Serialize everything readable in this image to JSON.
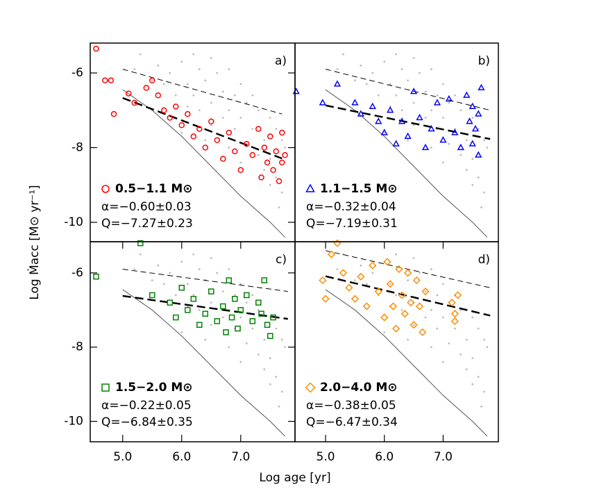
{
  "xlabel": "Log age [yr]",
  "ylabel": "Log Ṁacc [M⊙ yr⁻¹]",
  "background_points": {
    "color": "#bbbbbb",
    "x": [
      5.3,
      5.6,
      5.8,
      6.0,
      6.1,
      6.2,
      6.3,
      6.4,
      6.5,
      6.6,
      6.7,
      6.8,
      6.9,
      7.0,
      7.1,
      7.2,
      7.3,
      7.4,
      7.5,
      7.6,
      7.7,
      7.75,
      7.6,
      7.4,
      7.3,
      7.1,
      6.9,
      6.7,
      6.5,
      6.3,
      6.1,
      5.9,
      5.7,
      5.5,
      5.2,
      6.2,
      6.5,
      6.8,
      7.0,
      7.2,
      7.5,
      7.7,
      7.65,
      7.5,
      6.0,
      6.4,
      6.8,
      7.0
    ],
    "y": [
      -5.5,
      -5.8,
      -6.0,
      -5.7,
      -6.3,
      -6.6,
      -5.9,
      -6.2,
      -6.8,
      -6.0,
      -6.5,
      -7.0,
      -6.6,
      -7.2,
      -6.8,
      -7.5,
      -7.0,
      -7.8,
      -8.3,
      -8.8,
      -9.2,
      -8.0,
      -7.5,
      -8.6,
      -8.2,
      -7.9,
      -7.5,
      -7.2,
      -7.4,
      -7.0,
      -6.9,
      -6.6,
      -6.3,
      -6.2,
      -5.9,
      -5.5,
      -5.6,
      -5.9,
      -6.3,
      -6.6,
      -7.2,
      -7.8,
      -9.6,
      -9.0,
      -7.6,
      -7.8,
      -8.0,
      -8.4
    ]
  },
  "model_curve": {
    "x": [
      5.0,
      5.5,
      6.0,
      6.5,
      7.0,
      7.5,
      7.75
    ],
    "y": [
      -6.45,
      -7.0,
      -7.7,
      -8.5,
      -9.3,
      -10.0,
      -10.4
    ]
  },
  "chart_data": [
    {
      "type": "scatter",
      "panel_label": "a)",
      "xlim": [
        4.45,
        7.92
      ],
      "ylim": [
        -10.52,
        -5.2
      ],
      "yticks": [
        -6,
        -8,
        -10
      ],
      "stats": [
        "α=−0.60±0.03",
        "Q=−7.27±0.23"
      ],
      "fit_line": {
        "x": [
          5.0,
          7.7
        ],
        "y": [
          -6.67,
          -8.29
        ]
      },
      "upper_line": {
        "x": [
          5.0,
          7.7
        ],
        "y": [
          -5.9,
          -7.1
        ]
      },
      "series": [
        {
          "name": "0.5−1.1 M⊙",
          "color": "#ff0000",
          "marker": "circle",
          "x": [
            4.55,
            4.7,
            4.8,
            4.85,
            5.1,
            5.2,
            5.4,
            5.5,
            5.6,
            5.7,
            5.8,
            5.9,
            6.0,
            6.1,
            6.2,
            6.3,
            6.4,
            6.5,
            6.6,
            6.7,
            6.8,
            6.9,
            7.0,
            7.1,
            7.2,
            7.3,
            7.35,
            7.4,
            7.45,
            7.5,
            7.55,
            7.6,
            7.65,
            7.7,
            7.7,
            7.75
          ],
          "y": [
            -5.35,
            -6.2,
            -6.2,
            -7.1,
            -6.55,
            -6.8,
            -6.4,
            -6.2,
            -6.6,
            -7.0,
            -7.2,
            -6.9,
            -7.4,
            -7.1,
            -7.7,
            -7.5,
            -8.0,
            -7.3,
            -7.8,
            -8.3,
            -7.6,
            -8.1,
            -8.6,
            -7.9,
            -8.2,
            -7.5,
            -8.8,
            -8.0,
            -8.4,
            -7.7,
            -8.6,
            -8.1,
            -8.9,
            -7.6,
            -8.4,
            -8.2
          ]
        }
      ]
    },
    {
      "type": "scatter",
      "panel_label": "b)",
      "xlim": [
        4.48,
        7.94
      ],
      "ylim": [
        -10.52,
        -5.2
      ],
      "stats": [
        "α=−0.32±0.04",
        "Q=−7.19±0.31"
      ],
      "fit_line": {
        "x": [
          5.0,
          7.8
        ],
        "y": [
          -6.87,
          -7.77
        ]
      },
      "upper_line": {
        "x": [
          5.0,
          7.8
        ],
        "y": [
          -5.9,
          -7.0
        ]
      },
      "series": [
        {
          "name": "1.1−1.5 M⊙",
          "color": "#0000ff",
          "marker": "triangle",
          "x": [
            4.5,
            4.95,
            5.2,
            5.5,
            5.6,
            5.8,
            5.9,
            6.0,
            6.1,
            6.2,
            6.3,
            6.4,
            6.5,
            6.6,
            6.7,
            6.8,
            6.9,
            7.0,
            7.1,
            7.2,
            7.3,
            7.4,
            7.45,
            7.5,
            7.5,
            7.55,
            7.6,
            7.6,
            7.65
          ],
          "y": [
            -6.5,
            -6.8,
            -6.3,
            -6.8,
            -7.1,
            -6.9,
            -7.3,
            -7.6,
            -7.0,
            -7.9,
            -7.3,
            -7.7,
            -6.5,
            -7.2,
            -8.0,
            -7.5,
            -6.8,
            -7.8,
            -6.7,
            -7.6,
            -8.0,
            -6.6,
            -7.3,
            -7.9,
            -6.9,
            -7.5,
            -8.2,
            -7.1,
            -6.4
          ]
        }
      ]
    },
    {
      "type": "scatter",
      "panel_label": "c)",
      "xlim": [
        4.45,
        7.92
      ],
      "ylim": [
        -10.55,
        -5.16
      ],
      "yticks": [
        -6,
        -8,
        -10
      ],
      "xticks": [
        {
          "value": 5,
          "label": "5.0"
        },
        {
          "value": 6,
          "label": "6.0"
        },
        {
          "value": 7,
          "label": "7.0"
        }
      ],
      "stats": [
        "α=−0.22±0.05",
        "Q=−6.84±0.35"
      ],
      "fit_line": {
        "x": [
          5.0,
          7.8
        ],
        "y": [
          -6.62,
          -7.24
        ]
      },
      "upper_line": {
        "x": [
          5.0,
          7.8
        ],
        "y": [
          -5.9,
          -6.5
        ]
      },
      "series": [
        {
          "name": "1.5−2.0 M⊙",
          "color": "#008000",
          "marker": "square",
          "x": [
            4.55,
            5.3,
            5.5,
            5.8,
            5.9,
            6.0,
            6.1,
            6.2,
            6.3,
            6.4,
            6.5,
            6.6,
            6.7,
            6.75,
            6.8,
            6.85,
            6.9,
            6.95,
            7.0,
            7.1,
            7.2,
            7.3,
            7.35,
            7.4,
            7.45,
            7.5,
            7.55
          ],
          "y": [
            -6.1,
            -5.2,
            -6.6,
            -6.8,
            -7.2,
            -6.4,
            -7.0,
            -6.7,
            -7.4,
            -7.1,
            -6.5,
            -7.3,
            -6.9,
            -7.6,
            -6.2,
            -7.2,
            -6.7,
            -7.5,
            -7.0,
            -6.6,
            -7.3,
            -6.8,
            -7.1,
            -6.2,
            -7.4,
            -7.7,
            -7.2
          ]
        }
      ]
    },
    {
      "type": "scatter",
      "panel_label": "d)",
      "xlim": [
        4.48,
        7.94
      ],
      "ylim": [
        -10.55,
        -5.16
      ],
      "xticks": [
        {
          "value": 5,
          "label": "5.0"
        },
        {
          "value": 6,
          "label": "6.0"
        },
        {
          "value": 7,
          "label": "7.0"
        }
      ],
      "stats": [
        "α=−0.38±0.05",
        "Q=−6.47±0.34"
      ],
      "fit_line": {
        "x": [
          5.0,
          7.8
        ],
        "y": [
          -6.09,
          -7.15
        ]
      },
      "upper_line": {
        "x": [
          5.0,
          7.8
        ],
        "y": [
          -5.4,
          -6.4
        ]
      },
      "series": [
        {
          "name": "2.0−4.0 M⊙",
          "color": "#ff8c00",
          "marker": "diamond",
          "x": [
            5.2,
            5.1,
            5.3,
            5.4,
            5.5,
            5.6,
            5.7,
            5.8,
            5.9,
            6.0,
            6.05,
            6.1,
            6.15,
            6.2,
            6.25,
            6.3,
            6.35,
            6.4,
            6.45,
            6.5,
            6.55,
            6.6,
            6.65,
            6.7,
            5.0,
            4.95,
            7.15,
            7.2,
            7.25,
            7.2
          ],
          "y": [
            -5.2,
            -5.5,
            -6.0,
            -6.4,
            -6.7,
            -6.1,
            -6.9,
            -5.8,
            -6.5,
            -7.2,
            -5.7,
            -6.3,
            -6.9,
            -7.5,
            -5.9,
            -6.6,
            -7.1,
            -6.0,
            -6.8,
            -7.4,
            -6.2,
            -6.9,
            -7.6,
            -6.5,
            -6.7,
            -6.2,
            -6.8,
            -7.3,
            -6.6,
            -7.1
          ]
        }
      ]
    }
  ]
}
